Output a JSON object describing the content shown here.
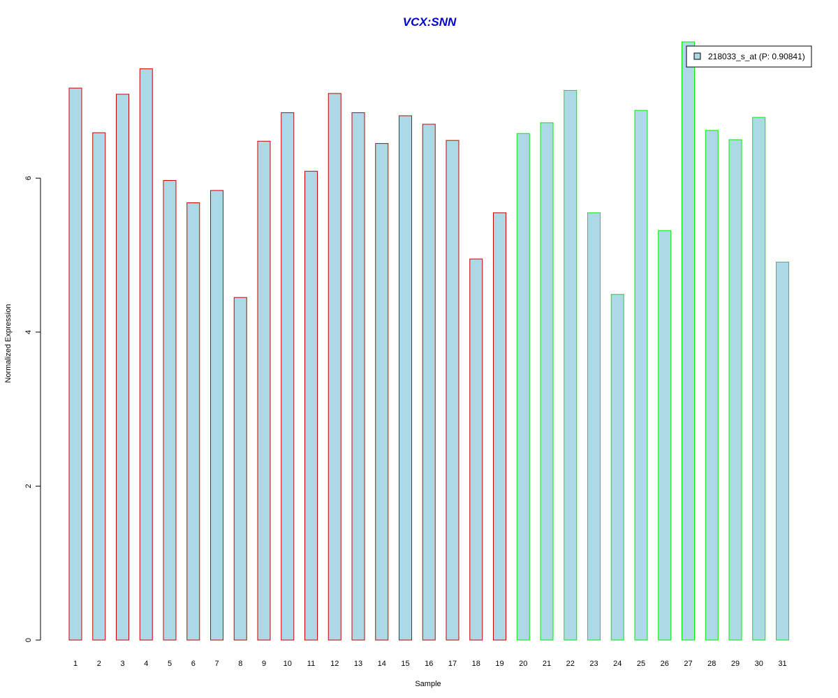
{
  "chart_data": {
    "type": "bar",
    "title": "VCX:SNN",
    "xlabel": "Sample",
    "ylabel": "Normalized Expression",
    "categories": [
      "1",
      "2",
      "3",
      "4",
      "5",
      "6",
      "7",
      "8",
      "9",
      "10",
      "11",
      "12",
      "13",
      "14",
      "15",
      "16",
      "17",
      "18",
      "19",
      "20",
      "21",
      "22",
      "23",
      "24",
      "25",
      "26",
      "27",
      "28",
      "29",
      "30",
      "31"
    ],
    "series": [
      {
        "name": "218033_s_at (P: 0.90841)",
        "values": [
          7.17,
          6.59,
          7.09,
          7.42,
          5.97,
          5.68,
          5.84,
          4.45,
          6.48,
          6.85,
          6.09,
          7.1,
          6.85,
          6.45,
          6.81,
          6.7,
          6.49,
          4.95,
          5.55,
          6.58,
          6.72,
          7.14,
          5.55,
          4.49,
          6.88,
          5.32,
          7.77,
          6.62,
          6.5,
          6.79,
          4.91
        ]
      }
    ],
    "groups": [
      {
        "range": [
          1,
          19
        ],
        "border_color": "#cc0000"
      },
      {
        "range": [
          20,
          31
        ],
        "border_color": "#00ee00"
      }
    ],
    "yticks": [
      0,
      2,
      4,
      6
    ],
    "ylim": [
      0,
      7.77
    ],
    "grid": false,
    "legend_position": "top-right",
    "colors": {
      "bar_fill": "#add8e6",
      "title": "#0000cc",
      "axis": "#000000"
    }
  }
}
